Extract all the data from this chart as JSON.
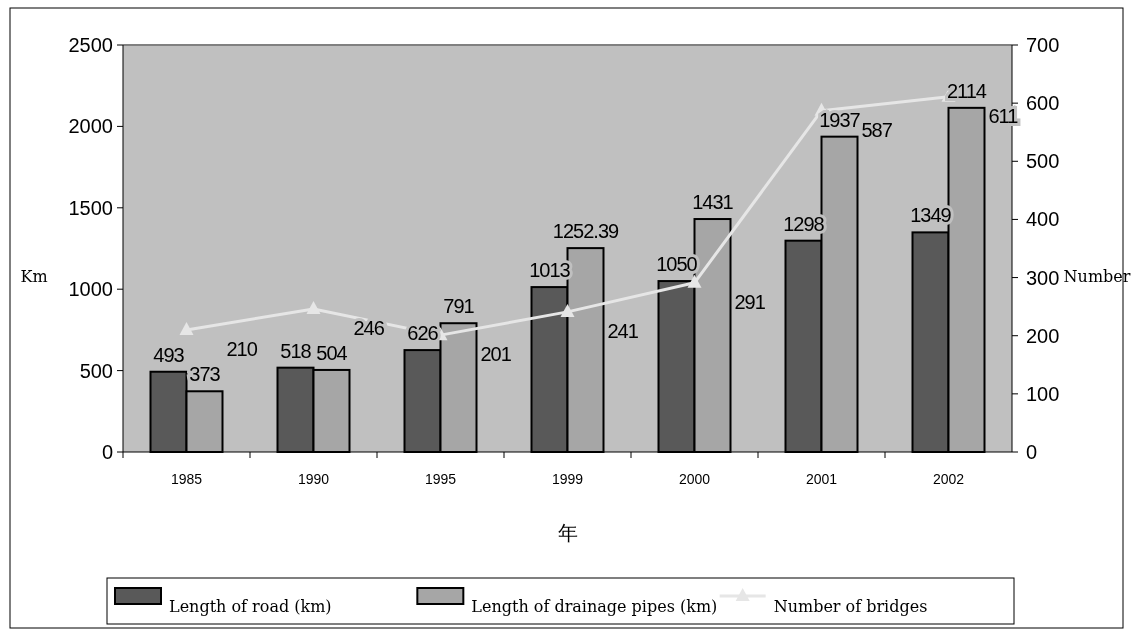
{
  "chart_data": {
    "type": "bar",
    "xlabel": "年",
    "ylabel": "Km",
    "y2label": "Number",
    "categories": [
      "1985",
      "1990",
      "1995",
      "1999",
      "2000",
      "2001",
      "2002"
    ],
    "series": [
      {
        "name": "Length of road (km)",
        "color": "#595959",
        "values": [
          493,
          518,
          626,
          1013,
          1050,
          1298,
          1349
        ]
      },
      {
        "name": "Length of drainage pipes (km)",
        "color": "#a6a6a6",
        "values": [
          373,
          504,
          791,
          1252.39,
          1431,
          1937,
          2114
        ]
      },
      {
        "name": "Number of bridges",
        "type": "line",
        "axis": "y2",
        "color": "#e6e6e6",
        "marker": "triangle",
        "values": [
          210,
          246,
          201,
          241,
          291,
          587,
          611
        ]
      }
    ],
    "ylim": [
      0,
      2500
    ],
    "yticks": [
      0,
      500,
      1000,
      1500,
      2000,
      2500
    ],
    "y2lim": [
      0,
      700
    ],
    "y2ticks": [
      0,
      100,
      200,
      300,
      400,
      500,
      600,
      700
    ],
    "data_labels": true,
    "legend": "bottom"
  }
}
